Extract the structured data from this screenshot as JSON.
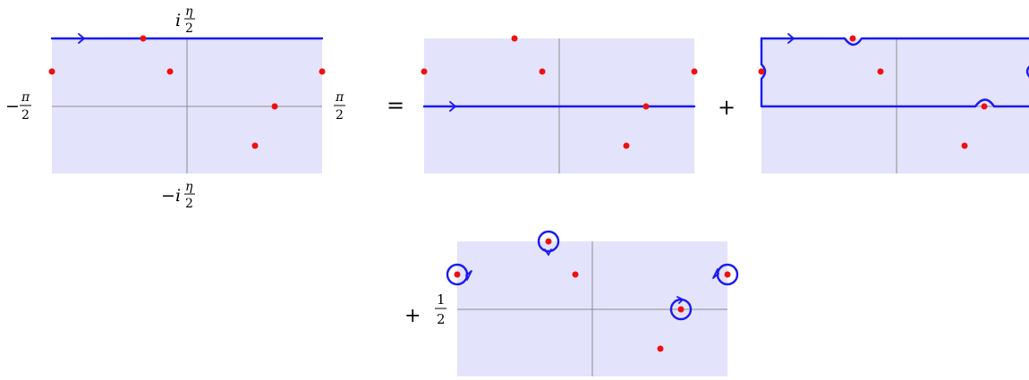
{
  "labels": {
    "top_imag": "i",
    "top_eta": "η",
    "top_den": "2",
    "bottom_minus": "−",
    "bottom_imag": "i",
    "bottom_eta": "η",
    "bottom_den": "2",
    "left_minus": "−",
    "left_pi": "π",
    "left_den": "2",
    "right_pi": "π",
    "right_den": "2"
  },
  "operators": {
    "equals": "=",
    "plus": "+",
    "plus_half_sign": "+",
    "half_num": "1",
    "half_den": "2"
  },
  "colors": {
    "region_fill": "#e3e3fb",
    "contour": "#1a1af0",
    "pole": "#ee1111",
    "axis": "#8c8c8c"
  }
}
